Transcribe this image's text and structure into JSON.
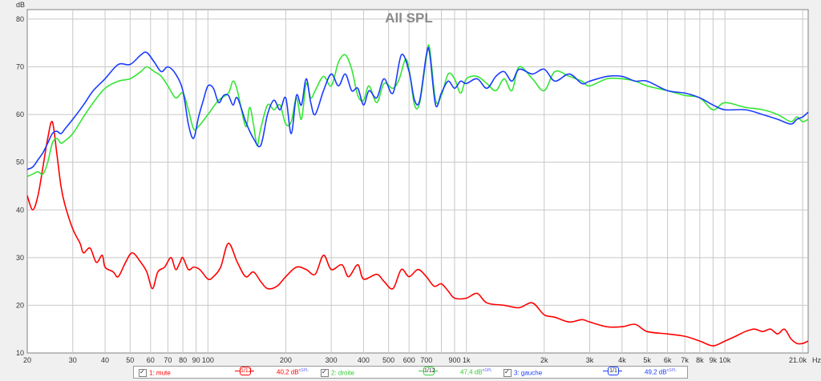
{
  "chart_data": {
    "type": "line",
    "title": "All SPL",
    "ylabel": "dB",
    "xunit": "Hz",
    "xscale": "log",
    "xlim": [
      20,
      21000
    ],
    "ylim": [
      10,
      82
    ],
    "grid": true,
    "yticks": [
      10,
      20,
      30,
      40,
      50,
      60,
      70,
      80
    ],
    "xticks": [
      {
        "v": 20,
        "label": "20"
      },
      {
        "v": 30,
        "label": "30"
      },
      {
        "v": 40,
        "label": "40"
      },
      {
        "v": 50,
        "label": "50"
      },
      {
        "v": 60,
        "label": "60"
      },
      {
        "v": 70,
        "label": "70"
      },
      {
        "v": 80,
        "label": "80"
      },
      {
        "v": 90,
        "label": "90"
      },
      {
        "v": 100,
        "label": "100"
      },
      {
        "v": 200,
        "label": "200"
      },
      {
        "v": 300,
        "label": "300"
      },
      {
        "v": 400,
        "label": "400"
      },
      {
        "v": 500,
        "label": "500"
      },
      {
        "v": 600,
        "label": "600"
      },
      {
        "v": 700,
        "label": "700"
      },
      {
        "v": 800,
        "label": ""
      },
      {
        "v": 900,
        "label": "900"
      },
      {
        "v": 1000,
        "label": "1k"
      },
      {
        "v": 2000,
        "label": "2k"
      },
      {
        "v": 3000,
        "label": "3k"
      },
      {
        "v": 4000,
        "label": "4k"
      },
      {
        "v": 5000,
        "label": "5k"
      },
      {
        "v": 6000,
        "label": "6k"
      },
      {
        "v": 7000,
        "label": "7k"
      },
      {
        "v": 8000,
        "label": "8k"
      },
      {
        "v": 9000,
        "label": "9k"
      },
      {
        "v": 10000,
        "label": "10k"
      },
      {
        "v": 20000,
        "label": ""
      },
      {
        "v": 21000,
        "label": "21.0k"
      }
    ],
    "series": [
      {
        "name": "mute",
        "color": "#ff0000",
        "points": [
          [
            20,
            43
          ],
          [
            21,
            40
          ],
          [
            22,
            43
          ],
          [
            23,
            49
          ],
          [
            24,
            55
          ],
          [
            25,
            58.5
          ],
          [
            26,
            52
          ],
          [
            27,
            45
          ],
          [
            28,
            41
          ],
          [
            30,
            36
          ],
          [
            32,
            33
          ],
          [
            33,
            31
          ],
          [
            35,
            32
          ],
          [
            37,
            29
          ],
          [
            39,
            30.5
          ],
          [
            40,
            28
          ],
          [
            43,
            27
          ],
          [
            45,
            26
          ],
          [
            48,
            29
          ],
          [
            51,
            31
          ],
          [
            55,
            29
          ],
          [
            58,
            27
          ],
          [
            61,
            23.5
          ],
          [
            64,
            27
          ],
          [
            68,
            28
          ],
          [
            72,
            30
          ],
          [
            75,
            27.5
          ],
          [
            78,
            29
          ],
          [
            80,
            30
          ],
          [
            84,
            27.5
          ],
          [
            88,
            28
          ],
          [
            93,
            27.5
          ],
          [
            100,
            25.5
          ],
          [
            105,
            26
          ],
          [
            112,
            28
          ],
          [
            120,
            33
          ],
          [
            130,
            29
          ],
          [
            140,
            26
          ],
          [
            150,
            27
          ],
          [
            160,
            25
          ],
          [
            170,
            23.5
          ],
          [
            185,
            24
          ],
          [
            200,
            26
          ],
          [
            220,
            28
          ],
          [
            240,
            27.5
          ],
          [
            260,
            26.5
          ],
          [
            280,
            30.5
          ],
          [
            300,
            27.5
          ],
          [
            330,
            28.5
          ],
          [
            350,
            26
          ],
          [
            380,
            28.5
          ],
          [
            400,
            25.5
          ],
          [
            450,
            26.5
          ],
          [
            480,
            25
          ],
          [
            520,
            23.5
          ],
          [
            560,
            27.5
          ],
          [
            600,
            26
          ],
          [
            650,
            27.5
          ],
          [
            700,
            26
          ],
          [
            750,
            24
          ],
          [
            800,
            24.5
          ],
          [
            850,
            23
          ],
          [
            900,
            21.5
          ],
          [
            1000,
            21.5
          ],
          [
            1100,
            22.5
          ],
          [
            1200,
            20.5
          ],
          [
            1400,
            20
          ],
          [
            1600,
            19.5
          ],
          [
            1800,
            20.5
          ],
          [
            2000,
            18
          ],
          [
            2200,
            17.5
          ],
          [
            2500,
            16.5
          ],
          [
            2800,
            17
          ],
          [
            3000,
            16.5
          ],
          [
            3500,
            15.5
          ],
          [
            4000,
            15.5
          ],
          [
            4500,
            16
          ],
          [
            5000,
            14.5
          ],
          [
            6000,
            14
          ],
          [
            7000,
            13.5
          ],
          [
            8000,
            12.5
          ],
          [
            9000,
            11.5
          ],
          [
            10000,
            12.5
          ],
          [
            11000,
            13.5
          ],
          [
            12000,
            14.5
          ],
          [
            13000,
            15
          ],
          [
            14000,
            14.5
          ],
          [
            15000,
            15
          ],
          [
            16000,
            14
          ],
          [
            17000,
            15
          ],
          [
            18000,
            13
          ],
          [
            19000,
            12
          ],
          [
            20000,
            12
          ],
          [
            21000,
            12.5
          ]
        ]
      },
      {
        "name": "droite",
        "color": "#33e633",
        "points": [
          [
            20,
            47
          ],
          [
            21,
            47.5
          ],
          [
            22,
            48
          ],
          [
            23,
            47.5
          ],
          [
            24,
            50
          ],
          [
            25,
            54
          ],
          [
            26,
            55
          ],
          [
            27,
            54
          ],
          [
            28,
            54.5
          ],
          [
            30,
            56
          ],
          [
            33,
            59.5
          ],
          [
            36,
            62.5
          ],
          [
            40,
            65.5
          ],
          [
            45,
            67
          ],
          [
            50,
            67.5
          ],
          [
            55,
            69
          ],
          [
            58,
            70
          ],
          [
            62,
            69
          ],
          [
            66,
            68
          ],
          [
            70,
            66
          ],
          [
            75,
            63.5
          ],
          [
            80,
            64.5
          ],
          [
            84,
            61
          ],
          [
            88,
            57
          ],
          [
            92,
            57.5
          ],
          [
            100,
            60
          ],
          [
            110,
            63
          ],
          [
            120,
            64.5
          ],
          [
            125,
            67
          ],
          [
            130,
            65
          ],
          [
            140,
            57.5
          ],
          [
            145,
            61.5
          ],
          [
            150,
            58
          ],
          [
            155,
            53.5
          ],
          [
            160,
            57
          ],
          [
            170,
            62
          ],
          [
            180,
            61
          ],
          [
            190,
            62
          ],
          [
            200,
            58
          ],
          [
            210,
            58.5
          ],
          [
            220,
            63.5
          ],
          [
            230,
            59
          ],
          [
            240,
            66.5
          ],
          [
            250,
            63.5
          ],
          [
            260,
            65
          ],
          [
            280,
            68
          ],
          [
            300,
            66
          ],
          [
            320,
            71
          ],
          [
            340,
            72.5
          ],
          [
            360,
            69.5
          ],
          [
            380,
            64
          ],
          [
            400,
            63
          ],
          [
            420,
            66
          ],
          [
            450,
            62.5
          ],
          [
            480,
            66.5
          ],
          [
            520,
            65.5
          ],
          [
            550,
            67.5
          ],
          [
            580,
            71.5
          ],
          [
            600,
            69.5
          ],
          [
            630,
            62
          ],
          [
            660,
            62.5
          ],
          [
            700,
            72
          ],
          [
            720,
            74
          ],
          [
            760,
            63
          ],
          [
            800,
            64
          ],
          [
            850,
            68.5
          ],
          [
            900,
            67.5
          ],
          [
            950,
            64.5
          ],
          [
            1000,
            67.5
          ],
          [
            1100,
            68
          ],
          [
            1200,
            66.5
          ],
          [
            1300,
            65
          ],
          [
            1400,
            67.5
          ],
          [
            1500,
            65
          ],
          [
            1600,
            70
          ],
          [
            1800,
            67.5
          ],
          [
            2000,
            65
          ],
          [
            2200,
            69
          ],
          [
            2500,
            68
          ],
          [
            2800,
            67
          ],
          [
            3000,
            66
          ],
          [
            3500,
            67.5
          ],
          [
            4000,
            67.5
          ],
          [
            4500,
            67
          ],
          [
            5000,
            66
          ],
          [
            6000,
            65
          ],
          [
            7000,
            64
          ],
          [
            8000,
            63.5
          ],
          [
            9000,
            61
          ],
          [
            10000,
            62.5
          ],
          [
            12000,
            61.5
          ],
          [
            14000,
            61
          ],
          [
            16000,
            60
          ],
          [
            18000,
            58.5
          ],
          [
            19000,
            59.5
          ],
          [
            20000,
            58.5
          ],
          [
            21000,
            59
          ]
        ]
      },
      {
        "name": "gauche",
        "color": "#1a3cff",
        "points": [
          [
            20,
            48.5
          ],
          [
            21,
            49
          ],
          [
            22,
            50.5
          ],
          [
            23,
            52
          ],
          [
            24,
            54
          ],
          [
            25,
            56
          ],
          [
            26,
            56.5
          ],
          [
            27,
            56
          ],
          [
            28,
            57
          ],
          [
            30,
            59
          ],
          [
            33,
            62
          ],
          [
            36,
            65
          ],
          [
            40,
            67.5
          ],
          [
            45,
            70.5
          ],
          [
            50,
            70.5
          ],
          [
            55,
            72.5
          ],
          [
            58,
            73
          ],
          [
            62,
            71
          ],
          [
            66,
            69
          ],
          [
            70,
            70
          ],
          [
            75,
            68.5
          ],
          [
            80,
            65
          ],
          [
            84,
            58
          ],
          [
            88,
            55
          ],
          [
            92,
            59.5
          ],
          [
            96,
            63
          ],
          [
            100,
            66
          ],
          [
            105,
            65.5
          ],
          [
            110,
            62.5
          ],
          [
            115,
            64
          ],
          [
            120,
            64
          ],
          [
            125,
            62
          ],
          [
            130,
            63.5
          ],
          [
            140,
            58.5
          ],
          [
            150,
            55
          ],
          [
            160,
            53.5
          ],
          [
            170,
            60
          ],
          [
            180,
            63
          ],
          [
            190,
            61
          ],
          [
            200,
            63.5
          ],
          [
            210,
            56
          ],
          [
            220,
            64
          ],
          [
            230,
            62
          ],
          [
            240,
            67.5
          ],
          [
            250,
            62.5
          ],
          [
            260,
            60
          ],
          [
            280,
            65
          ],
          [
            300,
            68.5
          ],
          [
            320,
            66
          ],
          [
            340,
            68.5
          ],
          [
            360,
            65
          ],
          [
            380,
            65.5
          ],
          [
            400,
            62
          ],
          [
            420,
            65
          ],
          [
            450,
            63.5
          ],
          [
            480,
            67.5
          ],
          [
            520,
            64.5
          ],
          [
            560,
            72.5
          ],
          [
            600,
            69
          ],
          [
            630,
            63
          ],
          [
            660,
            63
          ],
          [
            700,
            72.5
          ],
          [
            720,
            73
          ],
          [
            760,
            62
          ],
          [
            800,
            64.5
          ],
          [
            850,
            67
          ],
          [
            900,
            65.5
          ],
          [
            950,
            67
          ],
          [
            1000,
            66.5
          ],
          [
            1100,
            67.5
          ],
          [
            1200,
            65.5
          ],
          [
            1300,
            68
          ],
          [
            1400,
            69
          ],
          [
            1500,
            67
          ],
          [
            1600,
            69.5
          ],
          [
            1800,
            68.5
          ],
          [
            2000,
            69.5
          ],
          [
            2200,
            67
          ],
          [
            2500,
            68.5
          ],
          [
            2800,
            66.5
          ],
          [
            3000,
            67
          ],
          [
            3500,
            68
          ],
          [
            4000,
            68
          ],
          [
            4500,
            67
          ],
          [
            5000,
            67
          ],
          [
            6000,
            65
          ],
          [
            7000,
            64.5
          ],
          [
            8000,
            63.5
          ],
          [
            9000,
            62
          ],
          [
            10000,
            61
          ],
          [
            12000,
            61
          ],
          [
            14000,
            60
          ],
          [
            16000,
            59
          ],
          [
            18000,
            58
          ],
          [
            19000,
            59
          ],
          [
            20000,
            59.5
          ],
          [
            21000,
            60.5
          ]
        ]
      }
    ]
  },
  "legend": {
    "items": [
      {
        "index": "1:",
        "name": "mute",
        "smoothing": "1/12",
        "level": "40,2 dB",
        "suffix": "nSPL",
        "color": "#ff0000",
        "checked": true
      },
      {
        "index": "2:",
        "name": "droite",
        "smoothing": "1/12",
        "level": "47,4 dB",
        "suffix": "nSPL",
        "color": "#33e633",
        "checked": true
      },
      {
        "index": "3:",
        "name": "gauche",
        "smoothing": "1/1",
        "level": "49,2 dB",
        "suffix": "nSPL",
        "color": "#1a3cff",
        "checked": true
      }
    ]
  }
}
